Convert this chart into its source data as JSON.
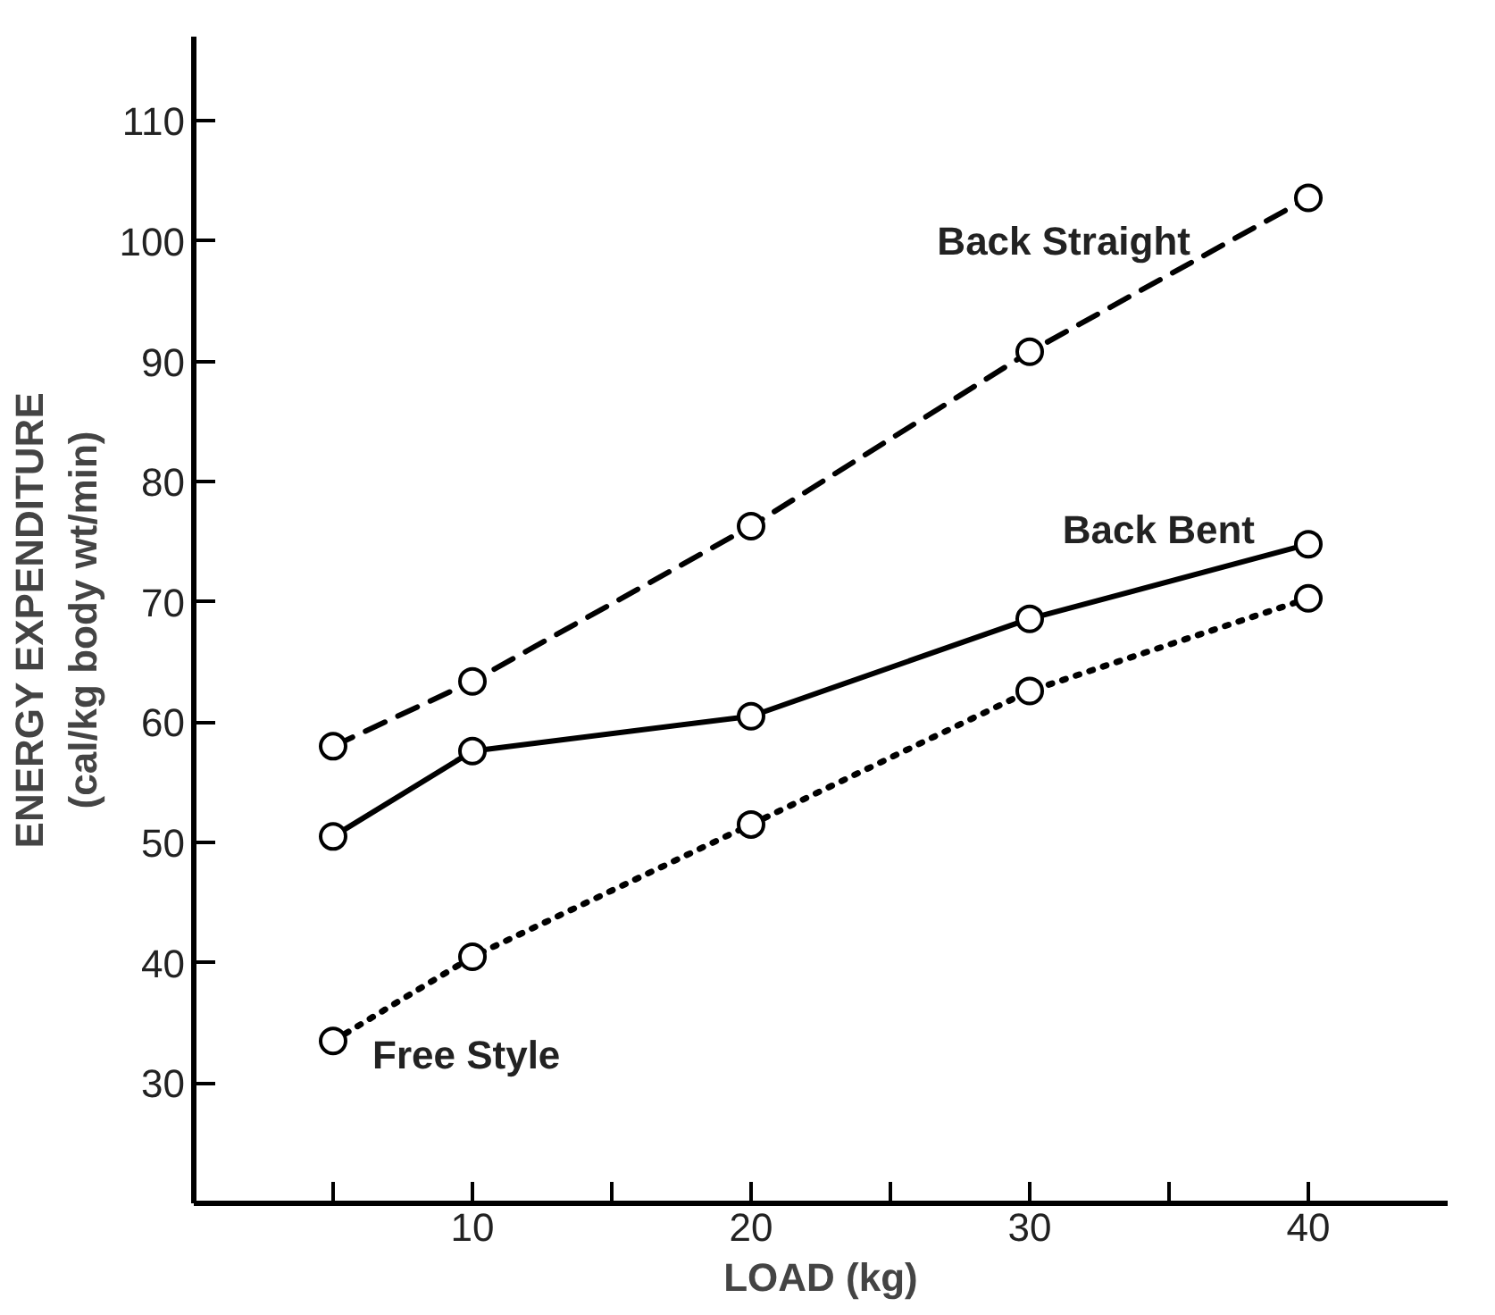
{
  "chart_data": {
    "type": "line",
    "xlabel": "LOAD (kg)",
    "ylabel": "ENERGY EXPENDITURE\n(cal/kg body wt/min)",
    "x": [
      5,
      10,
      20,
      30,
      40
    ],
    "series": [
      {
        "name": "Back Straight",
        "color": "#000000",
        "values": [
          58.0,
          63.4,
          76.3,
          90.8,
          103.6
        ],
        "line_style": "dashed",
        "marker": "circle"
      },
      {
        "name": "Back Bent",
        "color": "#000000",
        "values": [
          50.5,
          57.6,
          60.5,
          68.6,
          74.8
        ],
        "line_style": "solid",
        "marker": "circle"
      },
      {
        "name": "Free Style",
        "color": "#000000",
        "values": [
          33.5,
          40.5,
          51.5,
          62.6,
          70.3
        ],
        "line_style": "dotted",
        "marker": "circle"
      }
    ],
    "xlim": [
      0,
      45
    ],
    "ylim": [
      20,
      117
    ],
    "xticks": [
      {
        "value": 5,
        "label": null
      },
      10,
      {
        "value": 15,
        "label": null
      },
      20,
      {
        "value": 25,
        "label": null
      },
      30,
      {
        "value": 35,
        "label": null
      },
      40
    ],
    "yticks": [
      30,
      40,
      50,
      60,
      70,
      80,
      90,
      100,
      110
    ],
    "grid": false
  }
}
